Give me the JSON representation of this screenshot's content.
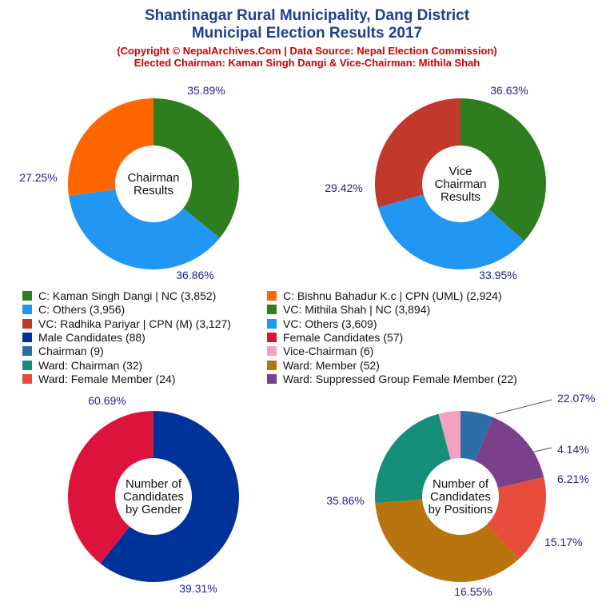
{
  "header": {
    "title_line1": "Shantinagar Rural Municipality, Dang District",
    "title_line2": "Municipal Election Results 2017",
    "subtitle_line1": "(Copyright © NepalArchives.Com | Data Source: Nepal Election Commission)",
    "subtitle_line2": "Elected Chairman: Kaman Singh Dangi & Vice-Chairman: Mithila Shah"
  },
  "legend": [
    {
      "label": "C: Kaman Singh Dangi | NC (3,852)",
      "color": "#2e7d1e"
    },
    {
      "label": "C: Bishnu Bahadur K.c | CPN (UML) (2,924)",
      "color": "#ff6600"
    },
    {
      "label": "C: Others (3,956)",
      "color": "#2196f3"
    },
    {
      "label": "VC: Mithila Shah | NC (3,894)",
      "color": "#2e7d1e"
    },
    {
      "label": "VC: Radhika Pariyar | CPN (M) (3,127)",
      "color": "#c0392b"
    },
    {
      "label": "VC: Others (3,609)",
      "color": "#2196f3"
    },
    {
      "label": "Male Candidates (88)",
      "color": "#003399"
    },
    {
      "label": "Female Candidates (57)",
      "color": "#dc143c"
    },
    {
      "label": "Chairman (9)",
      "color": "#2c6ea6"
    },
    {
      "label": "Vice-Chairman (6)",
      "color": "#f4a0c0"
    },
    {
      "label": "Ward: Chairman (32)",
      "color": "#168f7a"
    },
    {
      "label": "Ward: Member (52)",
      "color": "#b8740e"
    },
    {
      "label": "Ward: Female Member (24)",
      "color": "#e74c3c"
    },
    {
      "label": "Ward: Suppressed Group Female Member (22)",
      "color": "#7b3f8c"
    }
  ],
  "chart_data": [
    {
      "type": "pie",
      "center_label": "Chairman\nResults",
      "slices": [
        {
          "label": "C: Kaman Singh Dangi | NC",
          "value": 3852,
          "percent": "35.89%",
          "color": "#2e7d1e"
        },
        {
          "label": "C: Others",
          "value": 3956,
          "percent": "36.86%",
          "color": "#2196f3"
        },
        {
          "label": "C: Bishnu Bahadur K.c | CPN (UML)",
          "value": 2924,
          "percent": "27.25%",
          "color": "#ff6600"
        }
      ]
    },
    {
      "type": "pie",
      "center_label": "Vice\nChairman\nResults",
      "slices": [
        {
          "label": "VC: Mithila Shah | NC",
          "value": 3894,
          "percent": "36.63%",
          "color": "#2e7d1e"
        },
        {
          "label": "VC: Others",
          "value": 3609,
          "percent": "33.95%",
          "color": "#2196f3"
        },
        {
          "label": "VC: Radhika Pariyar | CPN (M)",
          "value": 3127,
          "percent": "29.42%",
          "color": "#c0392b"
        }
      ]
    },
    {
      "type": "pie",
      "center_label": "Number of\nCandidates\nby Gender",
      "slices": [
        {
          "label": "Male Candidates",
          "value": 88,
          "percent": "60.69%",
          "color": "#003399"
        },
        {
          "label": "Female Candidates",
          "value": 57,
          "percent": "39.31%",
          "color": "#dc143c"
        }
      ]
    },
    {
      "type": "pie",
      "center_label": "Number of\nCandidates\nby Positions",
      "slices": [
        {
          "label": "Chairman",
          "value": 9,
          "percent": "6.21%",
          "color": "#2c6ea6"
        },
        {
          "label": "Ward: Suppressed Group Female Member",
          "value": 22,
          "percent": "15.17%",
          "color": "#7b3f8c"
        },
        {
          "label": "Ward: Female Member",
          "value": 24,
          "percent": "16.55%",
          "color": "#e74c3c"
        },
        {
          "label": "Ward: Member",
          "value": 52,
          "percent": "35.86%",
          "color": "#b8740e"
        },
        {
          "label": "Ward: Chairman",
          "value": 32,
          "percent": "22.07%",
          "color": "#168f7a"
        },
        {
          "label": "Vice-Chairman",
          "value": 6,
          "percent": "4.14%",
          "color": "#f4a0c0"
        }
      ]
    }
  ]
}
